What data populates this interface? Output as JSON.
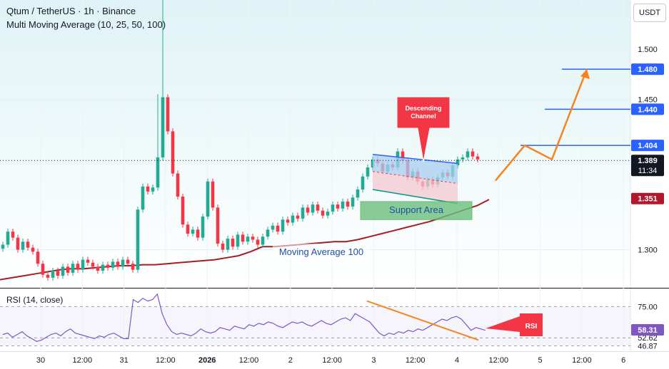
{
  "header": {
    "title": "Qtum / TetherUS · 1h · Binance",
    "indicator": "Multi Moving Average (10, 25, 50, 100)"
  },
  "currency_button": "USDT",
  "colors": {
    "bull": "#22ab94",
    "bear": "#f23645",
    "ma100": "#a41e23",
    "background_top": "#dff3f6",
    "channel_top": "#aacdf2",
    "channel_bottom": "#f3c8d0",
    "support_fill": "#6dbf7e",
    "projection": "#f5841f",
    "level_line": "#2962ff",
    "rsi_line": "#7e57c2",
    "callout": "#f23645"
  },
  "chart_data": [
    {
      "type": "candlestick",
      "title": "Qtum / TetherUS · 1h · Binance",
      "x_tick_labels": [
        "30",
        "12:00",
        "31",
        "12:00",
        "2026",
        "12:00",
        "2",
        "12:00",
        "3",
        "12:00",
        "4",
        "12:00",
        "5",
        "12:00",
        "6"
      ],
      "y_tick_labels": [
        "1.500",
        "1.450",
        "1.300"
      ],
      "ylim": [
        1.262,
        1.549
      ],
      "price_levels": [
        {
          "label": "1.480",
          "value": 1.48
        },
        {
          "label": "1.440",
          "value": 1.44
        },
        {
          "label": "1.404",
          "value": 1.404
        },
        {
          "label": "1.389",
          "sublabel": "11:34",
          "value": 1.389
        },
        {
          "label": "1.351",
          "value": 1.351
        }
      ],
      "candles_close": [
        1.305,
        1.318,
        1.312,
        1.3,
        1.308,
        1.302,
        1.298,
        1.286,
        1.275,
        1.272,
        1.279,
        1.274,
        1.283,
        1.277,
        1.286,
        1.28,
        1.29,
        1.287,
        1.283,
        1.279,
        1.285,
        1.282,
        1.288,
        1.283,
        1.29,
        1.286,
        1.28,
        1.34,
        1.363,
        1.358,
        1.362,
        1.392,
        1.452,
        1.418,
        1.376,
        1.353,
        1.325,
        1.316,
        1.32,
        1.312,
        1.333,
        1.368,
        1.342,
        1.306,
        1.3,
        1.311,
        1.303,
        1.315,
        1.308,
        1.313,
        1.31,
        1.305,
        1.313,
        1.32,
        1.324,
        1.318,
        1.33,
        1.327,
        1.334,
        1.331,
        1.342,
        1.337,
        1.345,
        1.339,
        1.334,
        1.338,
        1.345,
        1.341,
        1.348,
        1.343,
        1.352,
        1.36,
        1.373,
        1.382,
        1.39,
        1.386,
        1.378,
        1.385,
        1.382,
        1.398,
        1.389,
        1.372,
        1.378,
        1.368,
        1.363,
        1.37,
        1.365,
        1.372,
        1.377,
        1.373,
        1.384,
        1.39,
        1.392,
        1.398,
        1.393,
        1.39
      ],
      "moving_average_100": {
        "label": "Moving Average 100",
        "values": [
          1.27,
          1.272,
          1.274,
          1.276,
          1.278,
          1.28,
          1.281,
          1.281,
          1.282,
          1.283,
          1.284,
          1.284,
          1.285,
          1.285,
          1.286,
          1.287,
          1.288,
          1.289,
          1.29,
          1.292,
          1.294,
          1.298,
          1.303,
          1.303,
          1.304,
          1.305,
          1.306,
          1.307,
          1.308,
          1.308,
          1.31,
          1.313,
          1.316,
          1.319,
          1.322,
          1.325,
          1.328,
          1.332,
          1.336,
          1.34,
          1.344,
          1.35
        ]
      },
      "annotations": [
        {
          "label": "Descending Channel",
          "kind": "callout"
        },
        {
          "label": "Support Area",
          "kind": "zone",
          "range": [
            1.33,
            1.348
          ]
        }
      ],
      "projection_path": [
        1.369,
        1.404,
        1.39,
        1.48
      ]
    },
    {
      "type": "line",
      "title": "RSI (14, close)",
      "y_tick_labels": [
        "75.00",
        "52.62",
        "46.87"
      ],
      "current_value": "58.31",
      "ylim": [
        43,
        88
      ],
      "values": [
        55,
        56,
        53,
        55,
        57,
        54,
        52,
        50,
        51,
        53,
        55,
        56,
        54,
        57,
        59,
        56,
        55,
        54,
        53,
        52,
        54,
        53,
        55,
        56,
        54,
        52,
        52,
        80,
        78,
        81,
        79,
        80,
        84,
        70,
        62,
        57,
        55,
        56,
        55,
        54,
        56,
        59,
        57,
        56,
        57,
        60,
        59,
        58,
        61,
        60,
        59,
        62,
        61,
        63,
        62,
        64,
        63,
        61,
        60,
        62,
        64,
        63,
        64,
        62,
        61,
        63,
        65,
        63,
        62,
        64,
        66,
        67,
        65,
        70,
        68,
        66,
        64,
        60,
        56,
        54,
        56,
        55,
        57,
        56,
        58,
        57,
        59,
        58,
        60,
        62,
        64,
        66,
        65,
        67,
        68,
        66,
        62,
        58,
        60,
        59,
        58
      ],
      "annotations": [
        {
          "label": "RSI",
          "kind": "callout"
        }
      ]
    }
  ]
}
